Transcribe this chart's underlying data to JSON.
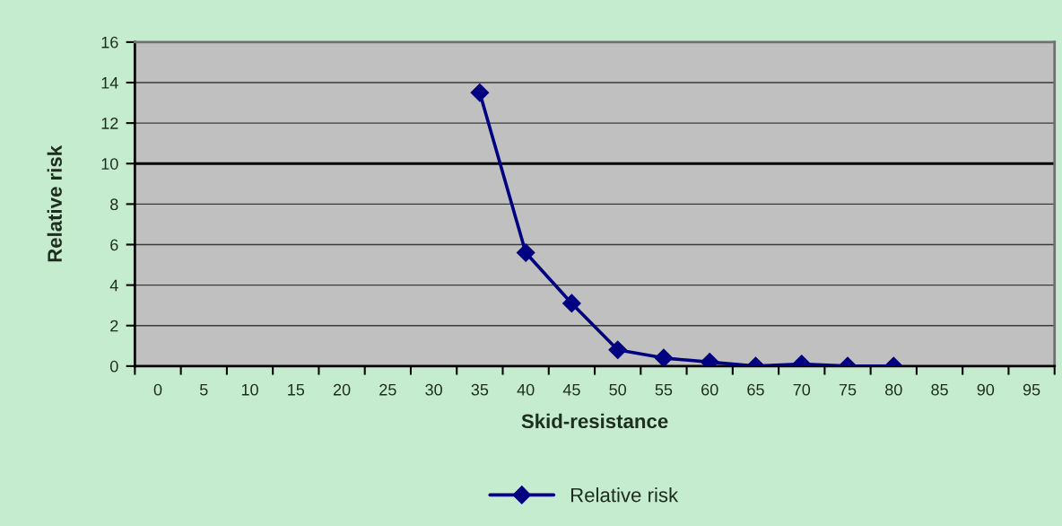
{
  "chart_data": {
    "type": "line",
    "xlabel": "Skid-resistance",
    "ylabel": "Relative risk",
    "categories": [
      "0",
      "5",
      "10",
      "15",
      "20",
      "25",
      "30",
      "35",
      "40",
      "45",
      "50",
      "55",
      "60",
      "65",
      "70",
      "75",
      "80",
      "85",
      "90",
      "95"
    ],
    "series": [
      {
        "name": "Relative risk",
        "color": "#000080",
        "values": [
          null,
          null,
          null,
          null,
          null,
          null,
          null,
          13.5,
          5.6,
          3.1,
          0.8,
          0.4,
          0.2,
          0.0,
          0.1,
          0.0,
          0.0,
          null,
          null,
          null
        ]
      }
    ],
    "ylim": [
      0,
      16
    ],
    "yticks": [
      0,
      2,
      4,
      6,
      8,
      10,
      12,
      14,
      16
    ],
    "grid": "y",
    "legend": "bottom",
    "marker": "diamond",
    "line_style": "solid",
    "ref_lines": [
      {
        "axis": "y",
        "value": 10,
        "color": "#000000"
      }
    ]
  }
}
